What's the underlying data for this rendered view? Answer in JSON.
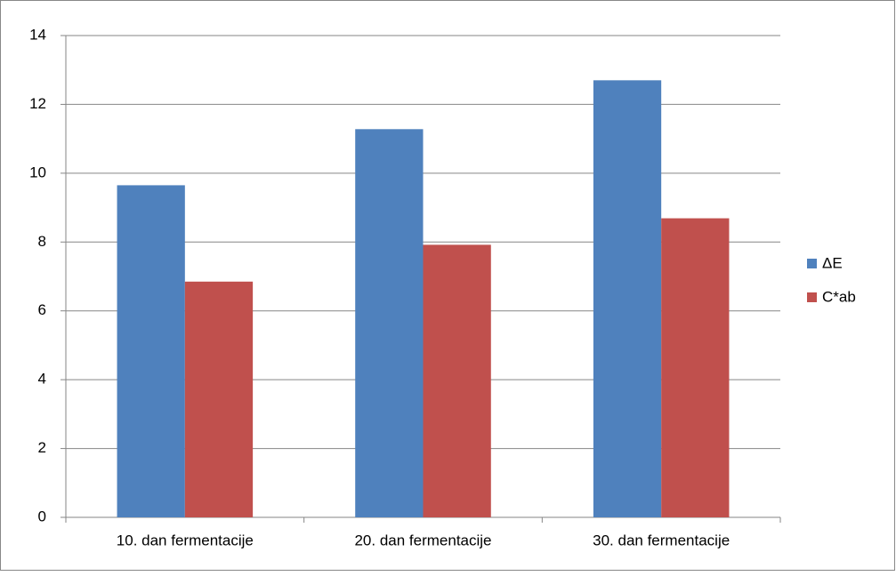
{
  "chart_data": {
    "type": "bar",
    "categories": [
      "10. dan fermentacije",
      "20. dan fermentacije",
      "30. dan fermentacije"
    ],
    "series": [
      {
        "name": "ΔE",
        "color": "#4f81bd",
        "values": [
          9.65,
          11.28,
          12.7
        ]
      },
      {
        "name": "C*ab",
        "color": "#c0504d",
        "values": [
          6.85,
          7.92,
          8.69
        ]
      }
    ],
    "ylim": [
      0,
      14
    ],
    "yticks": [
      0,
      2,
      4,
      6,
      8,
      10,
      12,
      14
    ],
    "grid": true,
    "legend": "right"
  }
}
